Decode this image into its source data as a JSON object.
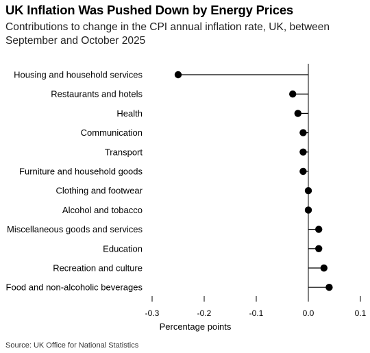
{
  "title": "UK Inflation Was Pushed Down by Energy Prices",
  "subtitle": "Contributions to change in the CPI annual inflation rate, UK, between September and October 2025",
  "source": "Source: UK Office for National Statistics",
  "chart_data": {
    "type": "dot",
    "xlabel": "Percentage points",
    "xlim": [
      -0.3,
      0.1
    ],
    "xticks": [
      -0.3,
      -0.2,
      -0.1,
      0.0,
      0.1
    ],
    "xtick_labels": [
      "-0.3",
      "-0.2",
      "-0.1",
      "0.0",
      "0.1"
    ],
    "categories": [
      "Housing and household services",
      "Restaurants and hotels",
      "Health",
      "Communication",
      "Transport",
      "Furniture and household goods",
      "Clothing and footwear",
      "Alcohol and tobacco",
      "Miscellaneous goods and services",
      "Education",
      "Recreation and culture",
      "Food and non-alcoholic beverages"
    ],
    "values": [
      -0.25,
      -0.03,
      -0.02,
      -0.01,
      -0.01,
      -0.01,
      0.0,
      0.0,
      0.02,
      0.02,
      0.03,
      0.04
    ],
    "colors": {
      "dot": "#000000",
      "line": "#000000",
      "axis": "#000000",
      "tick_text": "#000000"
    }
  }
}
